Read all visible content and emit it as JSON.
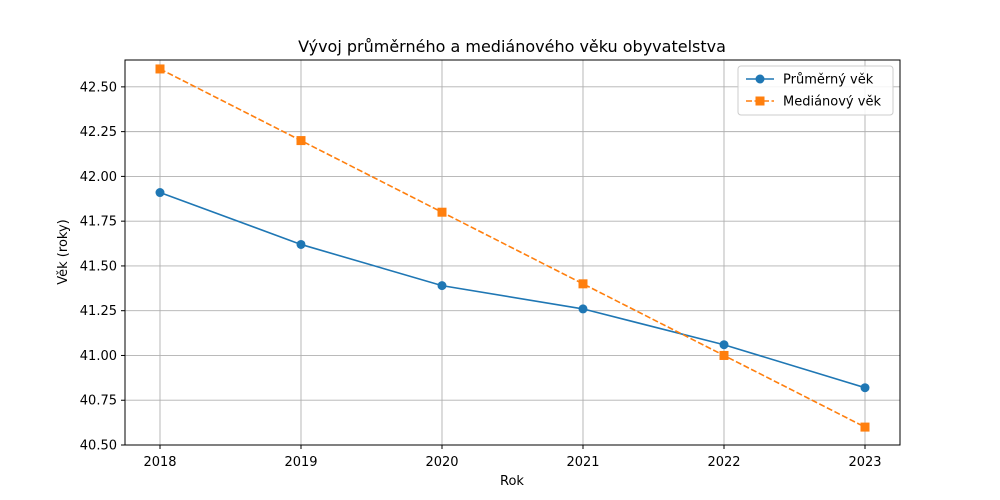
{
  "chart_data": {
    "type": "line",
    "title": "Vývoj průměrného a mediánového věku obyvatelstva",
    "xlabel": "Rok",
    "ylabel": "Věk (roky)",
    "x": [
      "2018",
      "2019",
      "2020",
      "2021",
      "2022",
      "2023"
    ],
    "ylim": [
      40.5,
      42.65
    ],
    "yticks": [
      "40.50",
      "40.75",
      "41.00",
      "41.25",
      "41.50",
      "41.75",
      "42.00",
      "42.25",
      "42.50"
    ],
    "grid": true,
    "legend_position": "top-right",
    "series": [
      {
        "name": "Průměrný věk",
        "values": [
          41.91,
          41.62,
          41.39,
          41.26,
          41.06,
          40.82
        ],
        "color": "#1f77b4",
        "marker": "circle",
        "linestyle": "solid"
      },
      {
        "name": "Mediánový věk",
        "values": [
          42.6,
          42.2,
          41.8,
          41.4,
          41.0,
          40.6
        ],
        "color": "#ff7f0e",
        "marker": "square",
        "linestyle": "dashed"
      }
    ]
  }
}
